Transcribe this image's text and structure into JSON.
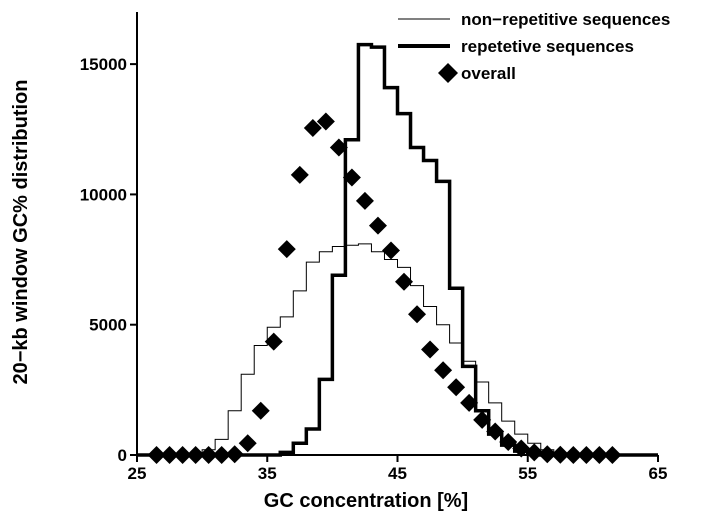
{
  "chart_data": {
    "type": "line",
    "xlabel": "GC concentration [%]",
    "ylabel": "20−kb window GC% distribution",
    "xlim": [
      25,
      65
    ],
    "ylim": [
      0,
      17000
    ],
    "xticks": [
      25,
      35,
      45,
      55,
      65
    ],
    "yticks": [
      0,
      5000,
      10000,
      15000
    ],
    "grid": false,
    "legend_position": "top-right",
    "series": [
      {
        "name": "non−repetitive sequences",
        "style": "thin-step",
        "color": "#000000",
        "x": [
          25,
          26,
          27,
          28,
          29,
          30,
          31,
          32,
          33,
          34,
          35,
          36,
          37,
          38,
          39,
          40,
          41,
          42,
          43,
          44,
          45,
          46,
          47,
          48,
          49,
          50,
          51,
          52,
          53,
          54,
          55,
          56,
          57,
          58,
          59,
          60,
          61,
          62,
          63,
          64,
          65
        ],
        "values": [
          0,
          0,
          0,
          0,
          50,
          200,
          600,
          1700,
          3100,
          4200,
          4900,
          5300,
          6300,
          7400,
          7800,
          8000,
          8050,
          8100,
          7800,
          7500,
          7200,
          6500,
          5700,
          5000,
          4300,
          3600,
          2800,
          2000,
          1300,
          800,
          450,
          200,
          80,
          20,
          5,
          0,
          0,
          0,
          0,
          0,
          0
        ]
      },
      {
        "name": "repetetive sequences",
        "style": "thick-step",
        "color": "#000000",
        "x": [
          25,
          26,
          27,
          28,
          29,
          30,
          31,
          32,
          33,
          34,
          35,
          36,
          37,
          38,
          39,
          40,
          41,
          42,
          43,
          44,
          45,
          46,
          47,
          48,
          49,
          50,
          51,
          52,
          53,
          54,
          55,
          56,
          57,
          58,
          59,
          60,
          61,
          62,
          63,
          64,
          65
        ],
        "values": [
          0,
          0,
          0,
          0,
          0,
          0,
          0,
          0,
          0,
          0,
          0,
          100,
          450,
          1000,
          2900,
          6900,
          12100,
          15750,
          15650,
          14100,
          13100,
          11800,
          11300,
          10500,
          6400,
          3400,
          1700,
          800,
          380,
          150,
          40,
          0,
          0,
          0,
          0,
          0,
          0,
          0,
          0,
          0,
          0
        ]
      },
      {
        "name": "overall",
        "style": "diamond-markers",
        "color": "#000000",
        "x": [
          26.5,
          27.5,
          28.5,
          29.5,
          30.5,
          31.5,
          32.5,
          33.5,
          34.5,
          35.5,
          36.5,
          37.5,
          38.5,
          39.5,
          40.5,
          41.5,
          42.5,
          43.5,
          44.5,
          45.5,
          46.5,
          47.5,
          48.5,
          49.5,
          50.5,
          51.5,
          52.5,
          53.5,
          54.5,
          55.5,
          56.5,
          57.5,
          58.5,
          59.5,
          60.5,
          61.5
        ],
        "values": [
          0,
          0,
          0,
          0,
          0,
          0,
          30,
          450,
          1700,
          4350,
          7900,
          10750,
          12550,
          12800,
          11800,
          10650,
          9750,
          8800,
          7850,
          6650,
          5400,
          4050,
          3250,
          2600,
          2000,
          1350,
          900,
          500,
          250,
          100,
          30,
          10,
          0,
          0,
          0,
          0
        ]
      }
    ]
  }
}
